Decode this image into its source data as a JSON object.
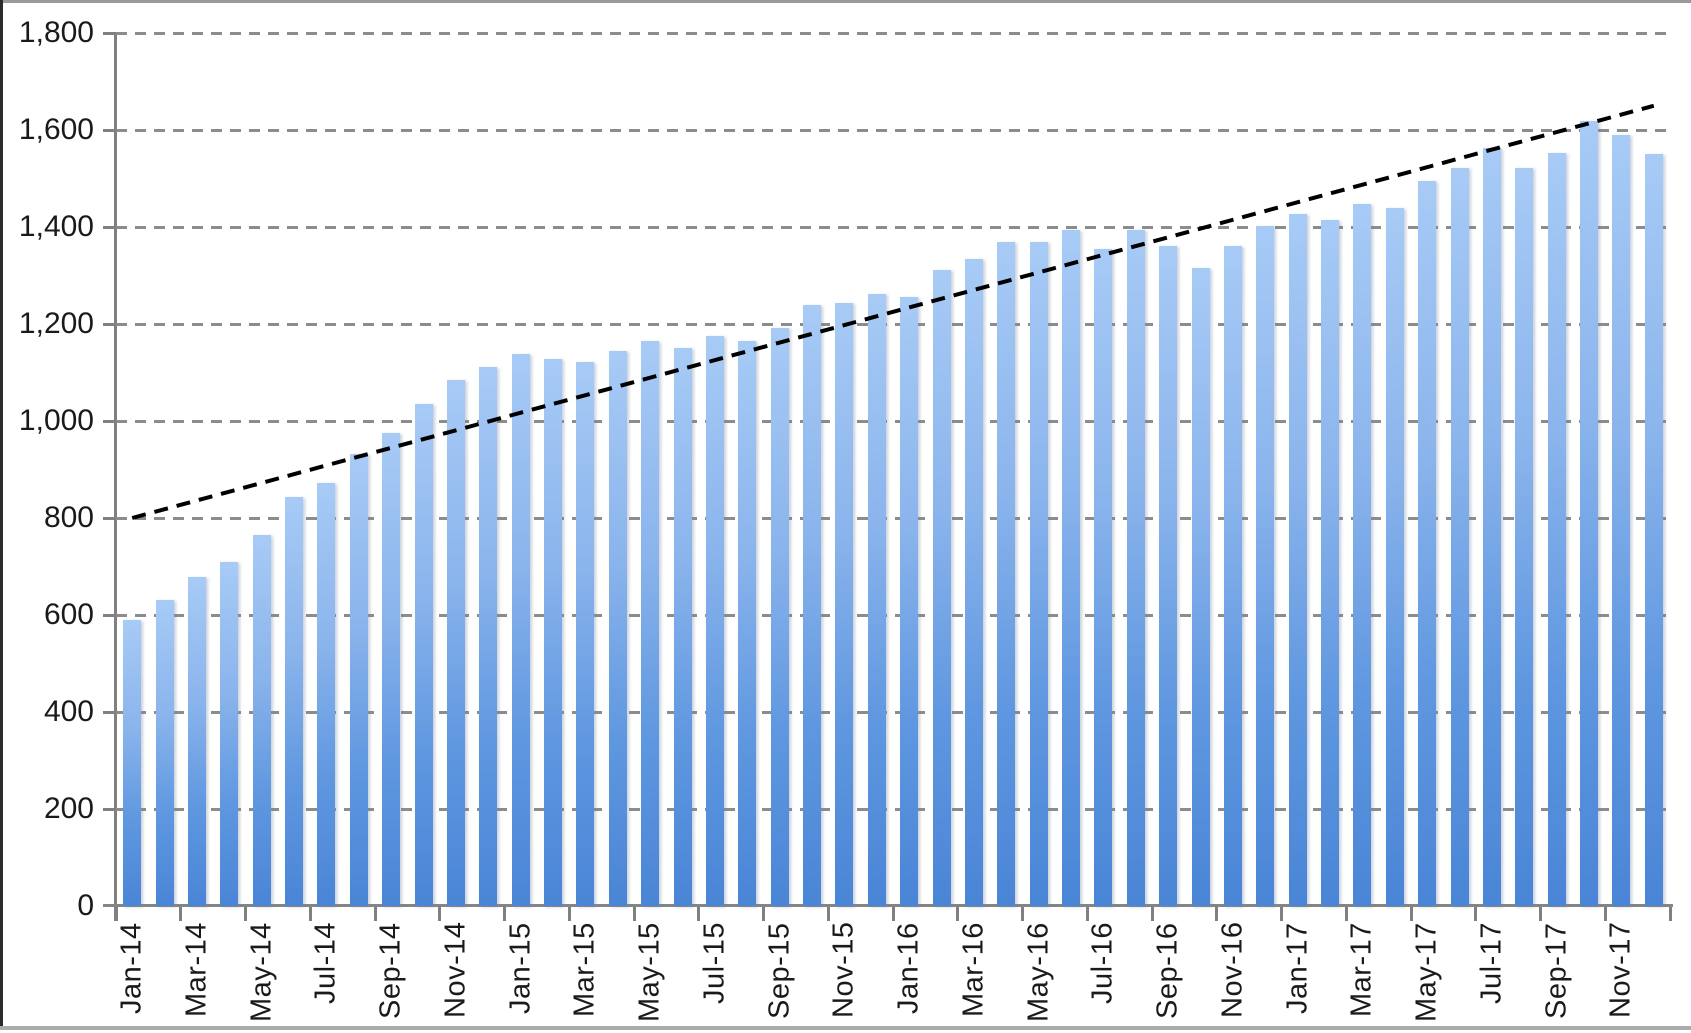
{
  "chart_data": {
    "type": "bar",
    "title": "",
    "xlabel": "",
    "ylabel": "",
    "legend": "none",
    "grid": "horizontal-dashed",
    "ylim": [
      0,
      1800
    ],
    "y_tick_step": 200,
    "y_tick_labels": [
      "0",
      "200",
      "400",
      "600",
      "800",
      "1,000",
      "1,200",
      "1,400",
      "1,600",
      "1,800"
    ],
    "x_tick_labels": [
      "Jan-14",
      "Mar-14",
      "May-14",
      "Jul-14",
      "Sep-14",
      "Nov-14",
      "Jan-15",
      "Mar-15",
      "May-15",
      "Jul-15",
      "Sep-15",
      "Nov-15",
      "Jan-16",
      "Mar-16",
      "May-16",
      "Jul-16",
      "Sep-16",
      "Nov-16",
      "Jan-17",
      "Mar-17",
      "May-17",
      "Jul-17",
      "Sep-17",
      "Nov-17"
    ],
    "categories": [
      "Jan-14",
      "Feb-14",
      "Mar-14",
      "Apr-14",
      "May-14",
      "Jun-14",
      "Jul-14",
      "Aug-14",
      "Sep-14",
      "Oct-14",
      "Nov-14",
      "Dec-14",
      "Jan-15",
      "Feb-15",
      "Mar-15",
      "Apr-15",
      "May-15",
      "Jun-15",
      "Jul-15",
      "Aug-15",
      "Sep-15",
      "Oct-15",
      "Nov-15",
      "Dec-15",
      "Jan-16",
      "Feb-16",
      "Mar-16",
      "Apr-16",
      "May-16",
      "Jun-16",
      "Jul-16",
      "Aug-16",
      "Sep-16",
      "Oct-16",
      "Nov-16",
      "Dec-16",
      "Jan-17",
      "Feb-17",
      "Mar-17",
      "Apr-17",
      "May-17",
      "Jun-17",
      "Jul-17",
      "Aug-17",
      "Sep-17",
      "Oct-17",
      "Nov-17",
      "Dec-17"
    ],
    "values": [
      590,
      630,
      678,
      710,
      765,
      843,
      872,
      932,
      975,
      1035,
      1084,
      1111,
      1138,
      1127,
      1121,
      1144,
      1166,
      1150,
      1175,
      1164,
      1192,
      1239,
      1243,
      1261,
      1255,
      1311,
      1335,
      1370,
      1370,
      1394,
      1354,
      1394,
      1360,
      1315,
      1361,
      1403,
      1427,
      1414,
      1447,
      1440,
      1494,
      1521,
      1562,
      1521,
      1552,
      1618,
      1589,
      1550
    ],
    "trendline": {
      "style": "dashed",
      "color": "#000000",
      "start_value": 800,
      "end_value": 1650
    }
  },
  "colors": {
    "bar_gradient_top": "#a8cbf6",
    "bar_gradient_bottom": "#4a85d6",
    "gridline": "#8c8c8c",
    "axis": "#808080",
    "label_text": "#1a1a1a",
    "trend": "#000000",
    "background": "#ffffff"
  }
}
